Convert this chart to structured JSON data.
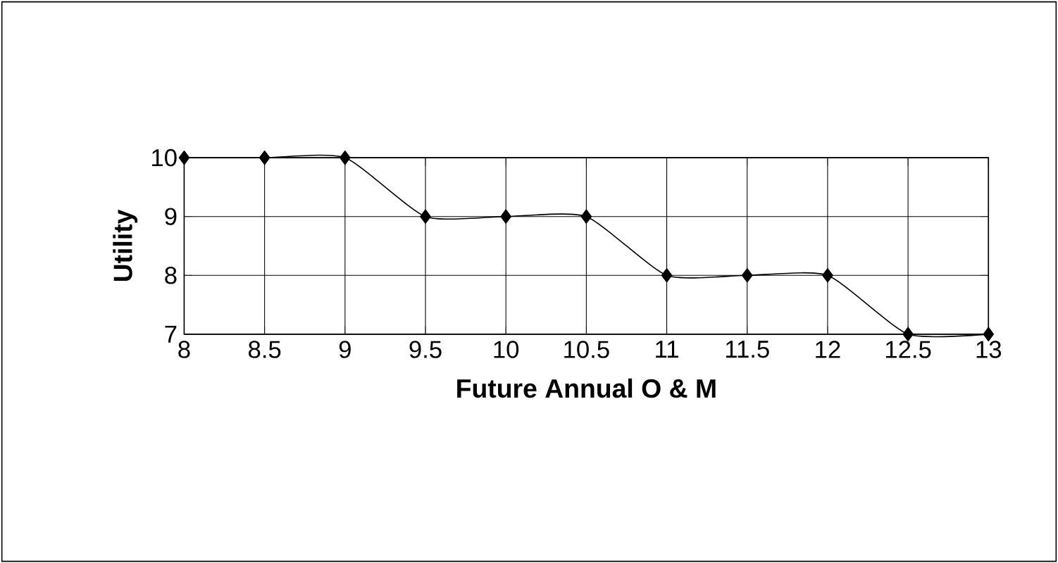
{
  "chart_data": {
    "type": "line",
    "xlabel": "Future Annual O & M",
    "ylabel": "Utility",
    "categories": [
      "8",
      "8.5",
      "9",
      "9.5",
      "10",
      "10.5",
      "11",
      "11.5",
      "12",
      "12.5",
      "13"
    ],
    "series": [
      {
        "color": "#000000",
        "values": [
          10,
          10,
          10,
          9,
          9,
          9,
          8,
          8,
          8,
          7,
          7
        ]
      }
    ],
    "ylim": [
      7,
      10
    ],
    "yticks": [
      7,
      8,
      9,
      10
    ],
    "grid": true,
    "marker": "diamond",
    "line_style": "solid"
  }
}
